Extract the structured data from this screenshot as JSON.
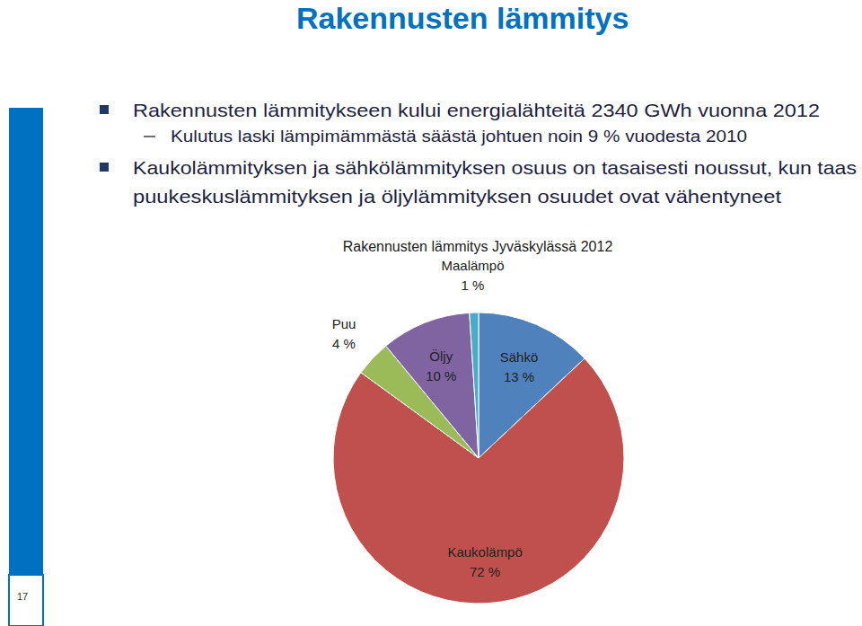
{
  "slide": {
    "title": "Rakennusten lämmitys",
    "bullets": [
      {
        "lines": [
          "Rakennusten lämmitykseen kului energialähteitä 2340 GWh vuonna 2012"
        ],
        "sub": [
          {
            "lines": [
              "Kulutus laski lämpimämmästä säästä johtuen noin 9 % vuodesta 2010"
            ]
          }
        ]
      },
      {
        "lines": [
          "Kaukolämmityksen ja sähkölämmityksen osuus on tasaisesti noussut, kun taas",
          "puukeskuslämmityksen ja öljylämmityksen osuudet ovat vähentyneet"
        ]
      }
    ],
    "page_number": 17
  },
  "chart_data": {
    "type": "pie",
    "title": "Rakennusten lämmitys Jyväskylässä 2012",
    "categories": [
      "Sähkö",
      "Kaukolämpö",
      "Puu",
      "Öljy",
      "Maalämpö"
    ],
    "values": [
      13,
      72,
      4,
      10,
      1
    ],
    "value_labels": [
      "13 %",
      "72 %",
      "4 %",
      "10 %",
      "1 %"
    ],
    "colors": [
      "#4f81bd",
      "#c0504d",
      "#9bbb59",
      "#8064a2",
      "#4bacc6"
    ],
    "data_labels": true
  }
}
